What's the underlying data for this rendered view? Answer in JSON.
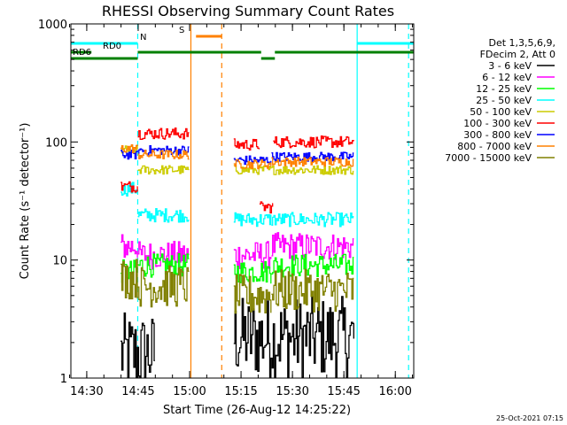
{
  "chart_data": {
    "type": "line",
    "title": "RHESSI Observing Summary Count Rates",
    "xlabel": "Start Time (26-Aug-12 14:25:22)",
    "ylabel": "Count Rate (s⁻¹ detector⁻¹)",
    "y_scale": "log",
    "ylim": [
      1,
      1000
    ],
    "xlim_minutes": [
      0,
      100
    ],
    "x_ticks": [
      "14:30",
      "14:45",
      "15:00",
      "15:15",
      "15:30",
      "15:45",
      "16:00"
    ],
    "y_ticks": [
      "1",
      "10",
      "100",
      "1000"
    ],
    "legend_header": [
      "Det 1,3,5,6,9,",
      "FDecim 2, Att 0"
    ],
    "series": [
      {
        "name": "3 - 6 keV",
        "color": "#000000",
        "segments": [
          [
            14.5,
            24.5,
            1.6
          ],
          [
            47.5,
            82.5,
            2.2
          ]
        ]
      },
      {
        "name": "6 - 12 keV",
        "color": "#ff00ff",
        "segments": [
          [
            14.5,
            19.5,
            13
          ],
          [
            19.5,
            34.5,
            11
          ],
          [
            47.5,
            58.5,
            11
          ],
          [
            58.5,
            82.5,
            13
          ]
        ]
      },
      {
        "name": "12 - 25 keV",
        "color": "#00ff00",
        "segments": [
          [
            14.5,
            19.5,
            8
          ],
          [
            19.5,
            34.5,
            9
          ],
          [
            47.5,
            58.5,
            8
          ],
          [
            58.5,
            82.5,
            9
          ]
        ]
      },
      {
        "name": "25 - 50 keV",
        "color": "#00ffff",
        "segments": [
          [
            14.5,
            19.5,
            40
          ],
          [
            19.5,
            34.5,
            24
          ],
          [
            47.5,
            58.5,
            22
          ],
          [
            58.5,
            82.5,
            22
          ]
        ]
      },
      {
        "name": "50 - 100 keV",
        "color": "#cccc00",
        "segments": [
          [
            14.5,
            19.5,
            85
          ],
          [
            19.5,
            34.5,
            58
          ],
          [
            47.5,
            58.5,
            58
          ],
          [
            58.5,
            82.5,
            58
          ]
        ]
      },
      {
        "name": "100 - 300 keV",
        "color": "#ff0000",
        "segments": [
          [
            14.5,
            19.5,
            42
          ],
          [
            19.5,
            34.5,
            118
          ],
          [
            47.5,
            55.0,
            95
          ],
          [
            55.0,
            59.0,
            28
          ],
          [
            59.0,
            82.5,
            100
          ]
        ]
      },
      {
        "name": "300 - 800 keV",
        "color": "#0000ff",
        "segments": [
          [
            14.5,
            19.5,
            78
          ],
          [
            19.5,
            34.5,
            85
          ],
          [
            47.5,
            58.5,
            70
          ],
          [
            58.5,
            82.5,
            75
          ]
        ]
      },
      {
        "name": "800 - 7000 keV",
        "color": "#ff8000",
        "segments": [
          [
            14.5,
            19.5,
            88
          ],
          [
            19.5,
            34.5,
            78
          ],
          [
            47.5,
            58.5,
            65
          ],
          [
            58.5,
            82.5,
            68
          ]
        ]
      },
      {
        "name": "7000 - 15000 keV",
        "color": "#808000",
        "segments": [
          [
            14.5,
            19.5,
            7
          ],
          [
            19.5,
            34.5,
            6
          ],
          [
            47.5,
            58.5,
            5
          ],
          [
            58.5,
            82.5,
            5.5
          ]
        ]
      }
    ],
    "flags": [
      {
        "label": "N",
        "color": "#00ffff",
        "segments": [
          [
            0,
            19.5
          ],
          [
            83.5,
            100
          ]
        ]
      },
      {
        "label": "S",
        "color": "#ff8000",
        "segments": [
          [
            36.5,
            44.0
          ]
        ]
      },
      {
        "label": "RD0",
        "color": "#008000",
        "segments": [
          [
            0,
            6
          ],
          [
            19.5,
            55.5
          ],
          [
            59.5,
            100
          ]
        ]
      },
      {
        "label": "RD6",
        "color": "#008000",
        "segments": [
          [
            0,
            19.5
          ],
          [
            55.5,
            59.5
          ]
        ]
      }
    ],
    "vlines": [
      {
        "x": 19.5,
        "color": "#00ffff",
        "style": "dashed"
      },
      {
        "x": 35.0,
        "color": "#ff8000",
        "style": "solid"
      },
      {
        "x": 44.0,
        "color": "#ff8000",
        "style": "dashed"
      },
      {
        "x": 83.5,
        "color": "#00ffff",
        "style": "solid"
      },
      {
        "x": 98.5,
        "color": "#00ffff",
        "style": "dashed"
      }
    ],
    "footer_date": "25-Oct-2021 07:15"
  }
}
